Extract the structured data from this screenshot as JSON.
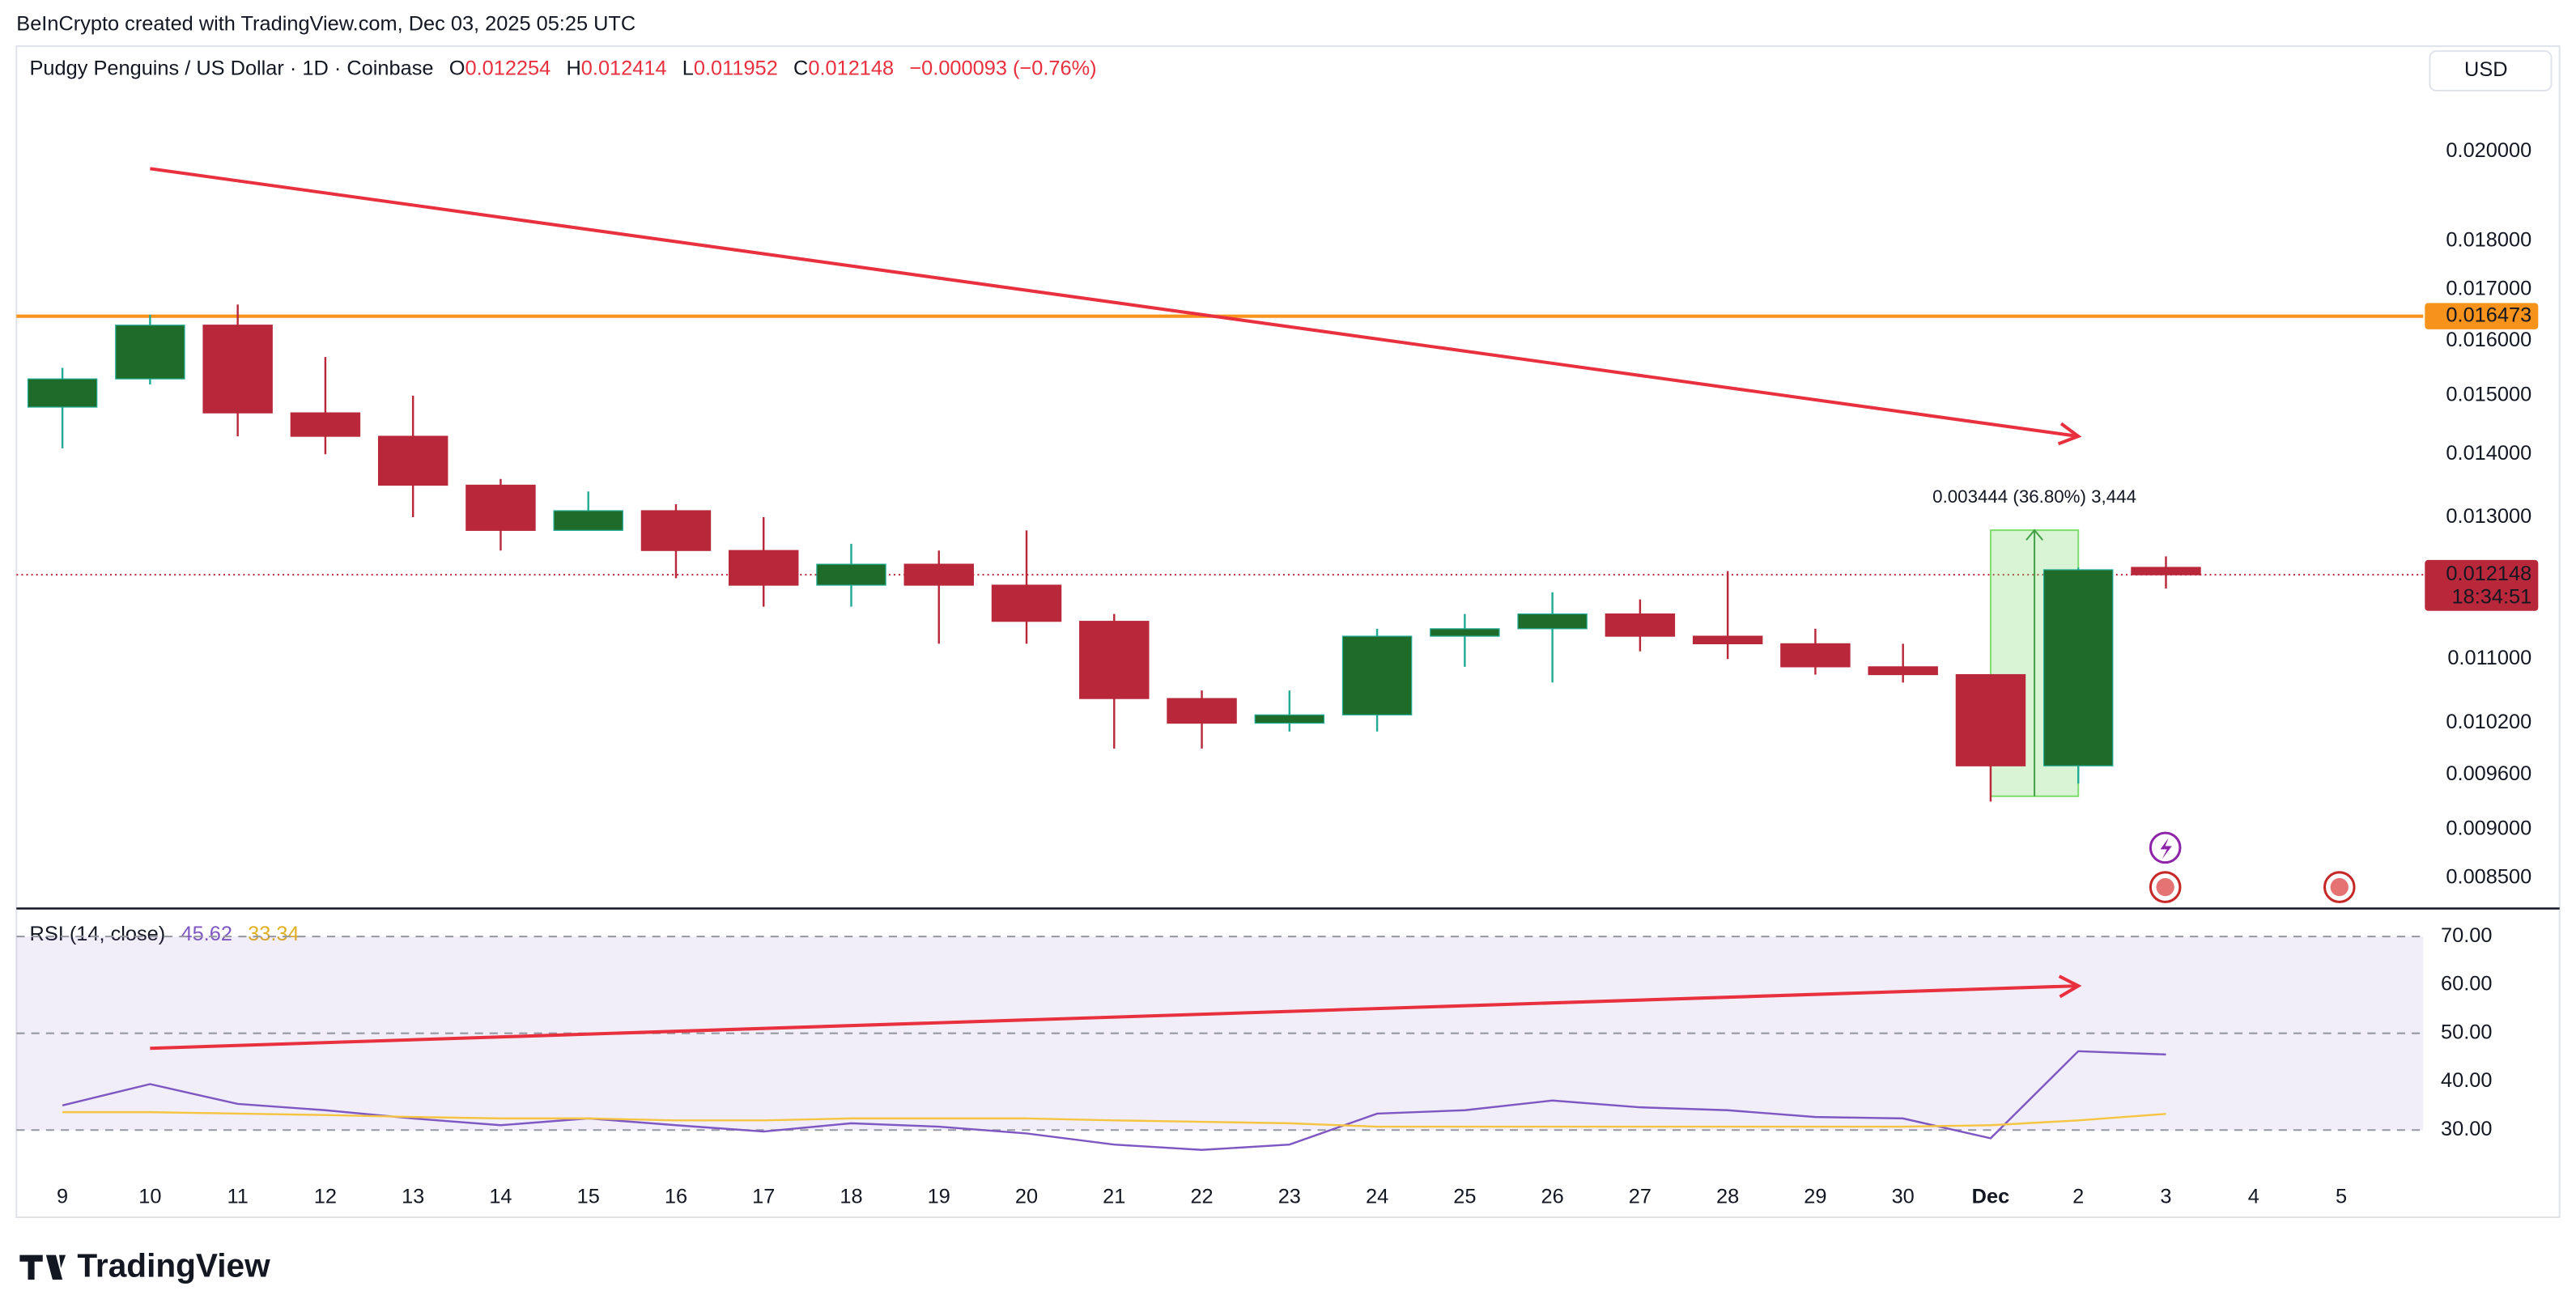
{
  "header": {
    "credit": "BeInCrypto created with TradingView.com, Dec 03, 2025 05:25 UTC",
    "logo": "TradingView"
  },
  "chart_data": {
    "type": "candlestick",
    "title": "Pudgy Penguins / US Dollar · 1D · Coinbase",
    "ohlc_labels": [
      "O",
      "H",
      "L",
      "C"
    ],
    "change": "−0.000093 (−0.76%)",
    "currency": "USD",
    "categories": [
      "9",
      "10",
      "11",
      "12",
      "13",
      "14",
      "15",
      "16",
      "17",
      "18",
      "19",
      "20",
      "21",
      "22",
      "23",
      "24",
      "25",
      "26",
      "27",
      "28",
      "29",
      "30",
      "Dec",
      "2",
      "3",
      "4",
      "5"
    ],
    "open": [
      0.0148,
      0.0153,
      0.0163,
      0.0147,
      0.0143,
      0.0135,
      0.0128,
      0.0131,
      0.0125,
      0.012,
      0.0123,
      0.012,
      0.0115,
      0.0105,
      0.0102,
      0.0103,
      0.0113,
      0.0114,
      0.0116,
      0.0113,
      0.0112,
      0.0109,
      0.0108,
      0.0097,
      0.012254,
      null,
      null
    ],
    "high": [
      0.0155,
      0.0165,
      0.0167,
      0.0157,
      0.015,
      0.0136,
      0.0134,
      0.0132,
      0.013,
      0.0126,
      0.0125,
      0.0128,
      0.0116,
      0.0106,
      0.0106,
      0.0114,
      0.0116,
      0.0119,
      0.0118,
      0.0122,
      0.0114,
      0.0112,
      0.0108,
      0.01225,
      0.012414,
      null,
      null
    ],
    "low": [
      0.0141,
      0.0152,
      0.0143,
      0.014,
      0.013,
      0.0125,
      0.0128,
      0.0121,
      0.0117,
      0.0117,
      0.0112,
      0.0112,
      0.0099,
      0.0099,
      0.0101,
      0.0101,
      0.0109,
      0.0107,
      0.0111,
      0.011,
      0.0108,
      0.0107,
      0.0093,
      0.0095,
      0.011952,
      null,
      null
    ],
    "close": [
      0.0153,
      0.0163,
      0.0147,
      0.0143,
      0.0135,
      0.0128,
      0.0131,
      0.0125,
      0.012,
      0.0123,
      0.012,
      0.0115,
      0.0105,
      0.0102,
      0.0103,
      0.0113,
      0.0114,
      0.0116,
      0.0113,
      0.0112,
      0.0109,
      0.0108,
      0.0097,
      0.01222,
      0.012148,
      null,
      null
    ],
    "up_color": "#1e6b2a",
    "down_color": "#b8283a",
    "up_wick_color": "#22ab94",
    "log_scale": true,
    "ylim": [
      0.0082,
      0.02264
    ],
    "yticks": [
      {
        "value": 0.02,
        "label": "0.020000"
      },
      {
        "value": 0.018,
        "label": "0.018000"
      },
      {
        "value": 0.017,
        "label": "0.017000"
      },
      {
        "value": 0.016,
        "label": "0.016000"
      },
      {
        "value": 0.015,
        "label": "0.015000"
      },
      {
        "value": 0.014,
        "label": "0.014000"
      },
      {
        "value": 0.013,
        "label": "0.013000"
      },
      {
        "value": 0.011,
        "label": "0.011000"
      },
      {
        "value": 0.0102,
        "label": "0.010200"
      },
      {
        "value": 0.0096,
        "label": "0.009600"
      },
      {
        "value": 0.009,
        "label": "0.009000"
      },
      {
        "value": 0.0085,
        "label": "0.008500"
      }
    ],
    "horizontal_line": {
      "value": 0.016473,
      "color": "#f7931a"
    },
    "countdown": "18:34:51",
    "trend_arrow": {
      "x": [
        1,
        23
      ],
      "values": [
        0.0196,
        0.0143
      ],
      "color": "#e8303f"
    },
    "measure": {
      "x": [
        22,
        23
      ],
      "values": [
        0.009359,
        0.012803
      ],
      "label": "0.003444 (36.80%) 3,444",
      "color": "#7fdc6f"
    },
    "indicator": {
      "type": "line",
      "title": "RSI (14, close)",
      "ylim": [
        22.5,
        75.8
      ],
      "yticks": [
        {
          "value": 70,
          "label": "70.00"
        },
        {
          "value": 60,
          "label": "60.00"
        },
        {
          "value": 50,
          "label": "50.00"
        },
        {
          "value": 40,
          "label": "40.00"
        },
        {
          "value": 30,
          "label": "30.00"
        }
      ],
      "band": [
        30,
        70
      ],
      "levels": [
        70,
        50,
        30
      ],
      "series": [
        {
          "color": "#7e57c2",
          "values": [
            35.1,
            39.5,
            35.4,
            34.1,
            32.4,
            31.0,
            32.4,
            31.0,
            29.7,
            31.4,
            30.7,
            29.3,
            27.0,
            25.9,
            27.0,
            33.4,
            34.1,
            36.1,
            34.7,
            34.1,
            32.7,
            32.4,
            28.3,
            46.3,
            45.62,
            null,
            null
          ]
        },
        {
          "color": "#f5c542",
          "values": [
            33.7,
            33.7,
            33.4,
            33.1,
            32.7,
            32.4,
            32.4,
            32.0,
            32.0,
            32.4,
            32.4,
            32.4,
            32.0,
            31.7,
            31.4,
            30.7,
            30.7,
            30.7,
            30.7,
            30.7,
            30.7,
            30.7,
            31.0,
            32.0,
            33.34,
            null,
            null
          ]
        }
      ],
      "trend_arrow": {
        "x": [
          1,
          23
        ],
        "values": [
          46.9,
          59.8
        ],
        "color": "#e8303f"
      }
    }
  }
}
